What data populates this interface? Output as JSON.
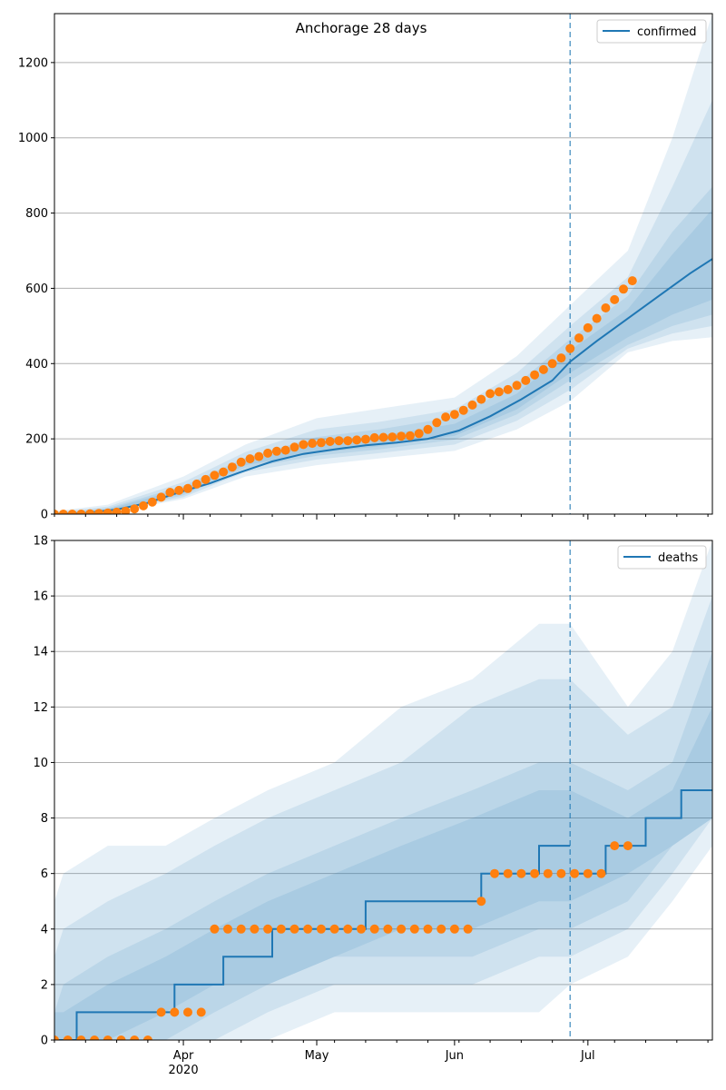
{
  "chart_data": [
    {
      "type": "line",
      "title": "Anchorage 28 days",
      "legend": {
        "entries": [
          "confirmed"
        ],
        "placement": "top-right"
      },
      "x_start": "2020-03-03",
      "x_end": "2020-07-29",
      "x_tick_labels": [
        {
          "date": "2020-04-01",
          "label": "Apr",
          "sublabel": "2020"
        },
        {
          "date": "2020-05-01",
          "label": "May",
          "sublabel": ""
        },
        {
          "date": "2020-06-01",
          "label": "Jun",
          "sublabel": ""
        },
        {
          "date": "2020-07-01",
          "label": "Jul",
          "sublabel": ""
        }
      ],
      "ylim": [
        0,
        1330
      ],
      "y_ticks": [
        0,
        200,
        400,
        600,
        800,
        1000,
        1200
      ],
      "grid": true,
      "forecast_start": "2020-06-27",
      "colors": {
        "model": "#1f77b4",
        "observed": "#ff7f0e",
        "band": "#1f77b4"
      },
      "model_series": {
        "name": "confirmed",
        "points": [
          [
            "2020-03-03",
            0
          ],
          [
            "2020-03-10",
            3
          ],
          [
            "2020-03-17",
            12
          ],
          [
            "2020-03-24",
            30
          ],
          [
            "2020-03-31",
            58
          ],
          [
            "2020-04-07",
            82
          ],
          [
            "2020-04-14",
            112
          ],
          [
            "2020-04-21",
            140
          ],
          [
            "2020-04-28",
            160
          ],
          [
            "2020-05-05",
            172
          ],
          [
            "2020-05-12",
            183
          ],
          [
            "2020-05-19",
            190
          ],
          [
            "2020-05-26",
            200
          ],
          [
            "2020-06-02",
            222
          ],
          [
            "2020-06-09",
            260
          ],
          [
            "2020-06-16",
            305
          ],
          [
            "2020-06-23",
            355
          ],
          [
            "2020-06-27",
            405
          ],
          [
            "2020-07-03",
            460
          ],
          [
            "2020-07-10",
            520
          ],
          [
            "2020-07-17",
            580
          ],
          [
            "2020-07-24",
            640
          ],
          [
            "2020-07-29",
            678
          ]
        ]
      },
      "bands": [
        {
          "dates": [
            "2020-03-03",
            "2020-03-15",
            "2020-04-01",
            "2020-04-15",
            "2020-05-01",
            "2020-05-15",
            "2020-06-01",
            "2020-06-15",
            "2020-06-27",
            "2020-07-10",
            "2020-07-20",
            "2020-07-29"
          ],
          "lower": [
            0,
            3,
            40,
            100,
            130,
            148,
            168,
            225,
            300,
            430,
            460,
            470
          ],
          "upper": [
            8,
            25,
            100,
            185,
            255,
            280,
            310,
            420,
            555,
            700,
            1000,
            1330
          ]
        },
        {
          "dates": [
            "2020-03-03",
            "2020-03-15",
            "2020-04-01",
            "2020-04-15",
            "2020-05-01",
            "2020-05-15",
            "2020-06-01",
            "2020-06-15",
            "2020-06-27",
            "2020-07-10",
            "2020-07-20",
            "2020-07-29"
          ],
          "lower": [
            0,
            5,
            45,
            112,
            145,
            162,
            185,
            248,
            330,
            440,
            480,
            500
          ],
          "upper": [
            5,
            20,
            85,
            165,
            225,
            245,
            278,
            375,
            500,
            630,
            870,
            1100
          ]
        },
        {
          "dates": [
            "2020-03-03",
            "2020-03-15",
            "2020-04-01",
            "2020-04-15",
            "2020-05-01",
            "2020-05-15",
            "2020-06-01",
            "2020-06-15",
            "2020-06-27",
            "2020-07-10",
            "2020-07-20",
            "2020-07-29"
          ],
          "lower": [
            0,
            6,
            50,
            122,
            155,
            172,
            198,
            265,
            355,
            450,
            500,
            530
          ],
          "upper": [
            3,
            16,
            75,
            150,
            205,
            225,
            258,
            345,
            465,
            580,
            750,
            870
          ]
        },
        {
          "dates": [
            "2020-03-03",
            "2020-03-15",
            "2020-04-01",
            "2020-04-15",
            "2020-05-01",
            "2020-05-15",
            "2020-06-01",
            "2020-06-15",
            "2020-06-27",
            "2020-07-10",
            "2020-07-20",
            "2020-07-29"
          ],
          "lower": [
            0,
            8,
            55,
            130,
            163,
            180,
            208,
            278,
            375,
            470,
            530,
            570
          ],
          "upper": [
            2,
            13,
            68,
            140,
            190,
            208,
            240,
            320,
            435,
            545,
            690,
            810
          ]
        }
      ],
      "observed": {
        "dates": [
          "2020-03-03",
          "2020-03-05",
          "2020-03-07",
          "2020-03-09",
          "2020-03-11",
          "2020-03-13",
          "2020-03-15",
          "2020-03-17",
          "2020-03-19",
          "2020-03-21",
          "2020-03-23",
          "2020-03-25",
          "2020-03-27",
          "2020-03-29",
          "2020-03-31",
          "2020-04-02",
          "2020-04-04",
          "2020-04-06",
          "2020-04-08",
          "2020-04-10",
          "2020-04-12",
          "2020-04-14",
          "2020-04-16",
          "2020-04-18",
          "2020-04-20",
          "2020-04-22",
          "2020-04-24",
          "2020-04-26",
          "2020-04-28",
          "2020-04-30",
          "2020-05-02",
          "2020-05-04",
          "2020-05-06",
          "2020-05-08",
          "2020-05-10",
          "2020-05-12",
          "2020-05-14",
          "2020-05-16",
          "2020-05-18",
          "2020-05-20",
          "2020-05-22",
          "2020-05-24",
          "2020-05-26",
          "2020-05-28",
          "2020-05-30",
          "2020-06-01",
          "2020-06-03",
          "2020-06-05",
          "2020-06-07",
          "2020-06-09",
          "2020-06-11",
          "2020-06-13",
          "2020-06-15",
          "2020-06-17",
          "2020-06-19",
          "2020-06-21",
          "2020-06-23",
          "2020-06-25",
          "2020-06-27",
          "2020-06-29",
          "2020-07-01",
          "2020-07-03",
          "2020-07-05",
          "2020-07-07",
          "2020-07-09",
          "2020-07-11"
        ],
        "values": [
          0,
          0,
          0,
          0,
          1,
          2,
          3,
          5,
          8,
          14,
          22,
          32,
          45,
          58,
          63,
          68,
          80,
          92,
          103,
          112,
          125,
          138,
          147,
          153,
          162,
          167,
          170,
          178,
          185,
          188,
          190,
          193,
          195,
          195,
          197,
          199,
          203,
          204,
          205,
          207,
          208,
          214,
          225,
          243,
          258,
          265,
          276,
          290,
          305,
          320,
          325,
          331,
          342,
          355,
          370,
          384,
          400,
          415,
          440,
          468,
          495,
          520,
          548,
          570,
          598,
          620
        ]
      }
    },
    {
      "type": "line",
      "title": "",
      "legend": {
        "entries": [
          "deaths"
        ],
        "placement": "top-right"
      },
      "x_start": "2020-03-03",
      "x_end": "2020-07-29",
      "x_tick_labels": [
        {
          "date": "2020-04-01",
          "label": "Apr",
          "sublabel": "2020"
        },
        {
          "date": "2020-05-01",
          "label": "May",
          "sublabel": ""
        },
        {
          "date": "2020-06-01",
          "label": "Jun",
          "sublabel": ""
        },
        {
          "date": "2020-07-01",
          "label": "Jul",
          "sublabel": ""
        }
      ],
      "ylim": [
        0,
        18
      ],
      "y_ticks": [
        0,
        2,
        4,
        6,
        8,
        10,
        12,
        14,
        16,
        18
      ],
      "grid": true,
      "forecast_start": "2020-06-27",
      "colors": {
        "model": "#1f77b4",
        "observed": "#ff7f0e",
        "band": "#1f77b4"
      },
      "model_series": {
        "name": "deaths",
        "points": [
          [
            "2020-03-03",
            0
          ],
          [
            "2020-03-08",
            0
          ],
          [
            "2020-03-08",
            1
          ],
          [
            "2020-03-30",
            1
          ],
          [
            "2020-03-30",
            2
          ],
          [
            "2020-04-10",
            2
          ],
          [
            "2020-04-10",
            3
          ],
          [
            "2020-04-21",
            3
          ],
          [
            "2020-04-21",
            4
          ],
          [
            "2020-05-12",
            4
          ],
          [
            "2020-05-12",
            5
          ],
          [
            "2020-06-07",
            5
          ],
          [
            "2020-06-07",
            6
          ],
          [
            "2020-06-20",
            6
          ],
          [
            "2020-06-20",
            7
          ],
          [
            "2020-06-27",
            7
          ]
        ],
        "forecast_points": [
          [
            "2020-06-27",
            6
          ],
          [
            "2020-07-05",
            6
          ],
          [
            "2020-07-05",
            7
          ],
          [
            "2020-07-14",
            7
          ],
          [
            "2020-07-14",
            8
          ],
          [
            "2020-07-22",
            8
          ],
          [
            "2020-07-22",
            9
          ],
          [
            "2020-07-29",
            9
          ]
        ]
      },
      "bands": [
        {
          "dates": [
            "2020-03-03",
            "2020-03-05",
            "2020-03-15",
            "2020-03-28",
            "2020-04-08",
            "2020-04-20",
            "2020-05-05",
            "2020-05-20",
            "2020-06-05",
            "2020-06-20",
            "2020-06-27",
            "2020-07-10",
            "2020-07-20",
            "2020-07-29"
          ],
          "lower": [
            0,
            0,
            0,
            0,
            0,
            0,
            1,
            1,
            1,
            1,
            2,
            3,
            5,
            7
          ],
          "upper": [
            5,
            6,
            7,
            7,
            8,
            9,
            10,
            12,
            13,
            15,
            15,
            12,
            14,
            18
          ]
        },
        {
          "dates": [
            "2020-03-03",
            "2020-03-05",
            "2020-03-15",
            "2020-03-28",
            "2020-04-08",
            "2020-04-20",
            "2020-05-05",
            "2020-05-20",
            "2020-06-05",
            "2020-06-20",
            "2020-06-27",
            "2020-07-10",
            "2020-07-20",
            "2020-07-29"
          ],
          "lower": [
            0,
            0,
            0,
            0,
            0,
            1,
            2,
            2,
            2,
            3,
            3,
            4,
            6,
            8
          ],
          "upper": [
            3,
            4,
            5,
            6,
            7,
            8,
            9,
            10,
            12,
            13,
            13,
            11,
            12,
            16
          ]
        },
        {
          "dates": [
            "2020-03-03",
            "2020-03-05",
            "2020-03-15",
            "2020-03-28",
            "2020-04-08",
            "2020-04-20",
            "2020-05-05",
            "2020-05-20",
            "2020-06-05",
            "2020-06-20",
            "2020-06-27",
            "2020-07-10",
            "2020-07-20",
            "2020-07-29"
          ],
          "lower": [
            0,
            0,
            0,
            0,
            1,
            2,
            3,
            3,
            3,
            4,
            4,
            5,
            7,
            8
          ],
          "upper": [
            1,
            2,
            3,
            4,
            5,
            6,
            7,
            8,
            9,
            10,
            10,
            9,
            10,
            14
          ]
        },
        {
          "dates": [
            "2020-03-03",
            "2020-03-05",
            "2020-03-15",
            "2020-03-28",
            "2020-04-08",
            "2020-04-20",
            "2020-05-05",
            "2020-05-20",
            "2020-06-05",
            "2020-06-20",
            "2020-06-27",
            "2020-07-10",
            "2020-07-20",
            "2020-07-29"
          ],
          "lower": [
            0,
            0,
            0,
            1,
            2,
            2,
            3,
            4,
            4,
            5,
            5,
            6,
            7,
            8
          ],
          "upper": [
            1,
            1,
            2,
            3,
            4,
            5,
            6,
            7,
            8,
            9,
            9,
            8,
            9,
            12
          ]
        }
      ],
      "observed": {
        "dates": [
          "2020-03-03",
          "2020-03-06",
          "2020-03-09",
          "2020-03-12",
          "2020-03-15",
          "2020-03-18",
          "2020-03-21",
          "2020-03-24",
          "2020-03-27",
          "2020-03-30",
          "2020-04-02",
          "2020-04-05",
          "2020-04-08",
          "2020-04-11",
          "2020-04-14",
          "2020-04-17",
          "2020-04-20",
          "2020-04-23",
          "2020-04-26",
          "2020-04-29",
          "2020-05-02",
          "2020-05-05",
          "2020-05-08",
          "2020-05-11",
          "2020-05-14",
          "2020-05-17",
          "2020-05-20",
          "2020-05-23",
          "2020-05-26",
          "2020-05-29",
          "2020-06-01",
          "2020-06-04",
          "2020-06-07",
          "2020-06-10",
          "2020-06-13",
          "2020-06-16",
          "2020-06-19",
          "2020-06-22",
          "2020-06-25",
          "2020-06-28",
          "2020-07-01",
          "2020-07-04",
          "2020-07-07",
          "2020-07-10"
        ],
        "values": [
          0,
          0,
          0,
          0,
          0,
          0,
          0,
          0,
          1,
          1,
          1,
          1,
          4,
          4,
          4,
          4,
          4,
          4,
          4,
          4,
          4,
          4,
          4,
          4,
          4,
          4,
          4,
          4,
          4,
          4,
          4,
          4,
          5,
          6,
          6,
          6,
          6,
          6,
          6,
          6,
          6,
          6,
          7,
          7
        ]
      }
    }
  ]
}
